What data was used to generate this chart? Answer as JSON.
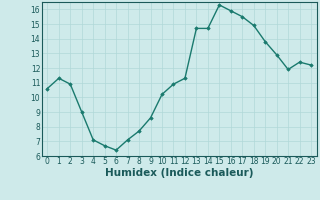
{
  "x": [
    0,
    1,
    2,
    3,
    4,
    5,
    6,
    7,
    8,
    9,
    10,
    11,
    12,
    13,
    14,
    15,
    16,
    17,
    18,
    19,
    20,
    21,
    22,
    23
  ],
  "y": [
    10.6,
    11.3,
    10.9,
    9.0,
    7.1,
    6.7,
    6.4,
    7.1,
    7.7,
    8.6,
    10.2,
    10.9,
    11.3,
    14.7,
    14.7,
    16.3,
    15.9,
    15.5,
    14.9,
    13.8,
    12.9,
    11.9,
    12.4,
    12.2
  ],
  "line_color": "#1a7a6e",
  "marker": "D",
  "marker_size": 1.8,
  "bg_color": "#ceeaea",
  "grid_color": "#b0d8d8",
  "xlabel": "Humidex (Indice chaleur)",
  "ylim": [
    6,
    16.5
  ],
  "xlim": [
    -0.5,
    23.5
  ],
  "yticks": [
    6,
    7,
    8,
    9,
    10,
    11,
    12,
    13,
    14,
    15,
    16
  ],
  "xticks": [
    0,
    1,
    2,
    3,
    4,
    5,
    6,
    7,
    8,
    9,
    10,
    11,
    12,
    13,
    14,
    15,
    16,
    17,
    18,
    19,
    20,
    21,
    22,
    23
  ],
  "tick_fontsize": 5.5,
  "label_fontsize": 7.5,
  "line_width": 1.0
}
